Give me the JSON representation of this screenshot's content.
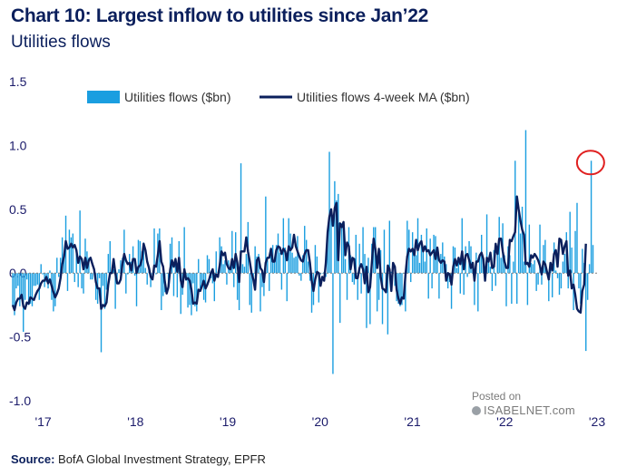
{
  "header": {
    "title": "Chart 10: Largest inflow to utilities since Jan’22",
    "subtitle": "Utilities flows"
  },
  "footer": {
    "source_label": "Source:",
    "source_text": "BofA Global Investment Strategy, EPFR"
  },
  "watermark": {
    "line1": "Posted on",
    "line2": "ISABELNET.com"
  },
  "colors": {
    "bars": "#1a9ee0",
    "ma": "#0b1f5c",
    "highlight": "#e02020",
    "axis_text": "#1a1a6a"
  },
  "chart_data": {
    "type": "bar",
    "title": "Utilities flows",
    "xlabel": "",
    "ylabel": "",
    "ylim": [
      -1.0,
      1.5
    ],
    "yticks": [
      1.5,
      1.0,
      0.5,
      0.0,
      -0.5,
      -1.0
    ],
    "ytick_labels": [
      "1.5",
      "1.0",
      "0.5",
      "0.0",
      "-0.5",
      "-1.0"
    ],
    "xticks": [
      "'17",
      "'18",
      "'19",
      "'20",
      "'21",
      "'22",
      "'23"
    ],
    "xtick_positions": [
      2017,
      2018,
      2019,
      2020,
      2021,
      2022,
      2023
    ],
    "x_range": [
      2016.65,
      2023.0
    ],
    "legend_position": "top-center",
    "series": [
      {
        "name": "Utilities flows ($bn)",
        "kind": "bar",
        "start": 2016.67,
        "step_weeks": 1,
        "values": [
          -0.25,
          -0.33,
          -0.12,
          -0.1,
          -0.26,
          -0.2,
          -0.46,
          -0.21,
          -0.05,
          -0.25,
          -0.24,
          -0.26,
          -0.1,
          -0.1,
          -0.09,
          -0.21,
          0.07,
          -0.01,
          -0.11,
          -0.07,
          -0.12,
          0.02,
          -0.21,
          -0.3,
          -0.26,
          0.12,
          -0.03,
          0.12,
          0.28,
          0.15,
          0.45,
          -0.14,
          0.34,
          0.28,
          0.31,
          -0.07,
          0.19,
          -0.11,
          0.49,
          -0.12,
          -0.16,
          0.27,
          0.17,
          0.12,
          -0.05,
          -0.05,
          0.02,
          -0.21,
          -0.24,
          -0.04,
          -0.62,
          -0.1,
          -0.28,
          -0.13,
          0.15,
          0.25,
          0.0,
          0.03,
          -0.28,
          -0.07,
          0.03,
          0.1,
          0.12,
          0.34,
          -0.16,
          -0.01,
          0.15,
          0.09,
          0.21,
          -0.02,
          -0.26,
          0.26,
          0.25,
          0.17,
          0.24,
          0.04,
          -0.09,
          0.04,
          -0.11,
          -0.04,
          0.35,
          -0.01,
          0.31,
          0.35,
          -0.29,
          -0.18,
          -0.15,
          0.0,
          -0.13,
          0.23,
          0.28,
          -0.18,
          0.12,
          -0.19,
          0.25,
          -0.32,
          -0.17,
          0.36,
          -0.06,
          -0.27,
          -0.25,
          -0.33,
          -0.08,
          -0.26,
          -0.3,
          0.11,
          -0.12,
          -0.11,
          -0.21,
          -0.23,
          0.14,
          0.11,
          -0.04,
          -0.08,
          -0.22,
          0.17,
          0.01,
          0.28,
          0.21,
          0.07,
          0.1,
          -0.09,
          0.1,
          0.05,
          0.33,
          -0.11,
          0.32,
          -0.21,
          -0.29,
          0.86,
          0.07,
          0.05,
          0.15,
          0.4,
          -0.25,
          -0.31,
          -0.05,
          0.21,
          0.13,
          0.15,
          -0.3,
          -0.11,
          -0.18,
          0.6,
          0.1,
          -0.14,
          0.19,
          0.22,
          0.1,
          0.22,
          0.31,
          0.16,
          -0.13,
          0.43,
          0.2,
          -0.22,
          0.43,
          0.31,
          0.16,
          0.12,
          0.13,
          0.29,
          -0.02,
          -0.06,
          0.14,
          0.37,
          0.26,
          0.09,
          -0.06,
          -0.31,
          -0.25,
          0.22,
          0.13,
          -0.23,
          -0.01,
          0.0,
          0.01,
          -0.03,
          0.33,
          0.95,
          0.49,
          -0.79,
          0.72,
          0.57,
          0.62,
          -0.39,
          0.39,
          0.34,
          0.11,
          -0.21,
          0.36,
          0.14,
          -0.07,
          -0.09,
          0.3,
          -0.21,
          0.23,
          -0.16,
          0.36,
          0.15,
          -0.43,
          0.12,
          -0.4,
          0.23,
          0.36,
          0.36,
          -0.3,
          -0.21,
          0.18,
          -0.4,
          0.34,
          -0.1,
          -0.48,
          0.41,
          0.01,
          0.0,
          -0.1,
          -0.22,
          -0.24,
          -0.26,
          -0.25,
          0.0,
          -0.3,
          0.41,
          0.34,
          -0.07,
          0.32,
          0.16,
          0.14,
          0.43,
          0.08,
          0.3,
          0.19,
          0.09,
          0.35,
          -0.2,
          0.27,
          -0.12,
          0.3,
          0.29,
          0.15,
          -0.2,
          0.15,
          0.24,
          0.13,
          0.07,
          -0.12,
          -0.07,
          -0.28,
          0.21,
          0.2,
          0.04,
          0.11,
          -0.16,
          0.43,
          -0.17,
          0.21,
          -0.03,
          0.25,
          0.21,
          0.08,
          -0.25,
          0.16,
          -0.3,
          0.15,
          0.3,
          0.08,
          0.02,
          0.46,
          0.1,
          0.05,
          -0.14,
          0.18,
          -0.1,
          0.2,
          0.44,
          0.12,
          0.39,
          0.14,
          -0.26,
          0.21,
          0.14,
          -0.24,
          0.09,
          0.88,
          -0.24,
          0.48,
          0.31,
          0.52,
          0.09,
          1.12,
          -0.25,
          0.38,
          0.08,
          0.07,
          0.1,
          -0.14,
          -0.09,
          0.38,
          -0.09,
          0.22,
          0.26,
          -0.01,
          -0.22,
          0.06,
          -0.19,
          0.24,
          0.02,
          -0.04,
          -0.17,
          -0.12,
          0.09,
          0.15,
          0.32,
          -0.12,
          0.48,
          0.2,
          -0.29,
          0.33,
          0.55,
          -0.12,
          -0.24,
          0.19,
          0.08,
          -0.61,
          -0.21,
          0.07,
          0.88,
          0.22
        ]
      },
      {
        "name": "Utilities flows 4-week MA ($bn)",
        "kind": "line",
        "start": 2016.67,
        "step_weeks": 1,
        "values": [
          -0.25,
          -0.29,
          -0.23,
          -0.2,
          -0.2,
          -0.17,
          -0.26,
          -0.28,
          -0.23,
          -0.24,
          -0.19,
          -0.2,
          -0.21,
          -0.17,
          -0.14,
          -0.12,
          -0.08,
          -0.06,
          -0.06,
          -0.03,
          -0.08,
          -0.05,
          -0.1,
          -0.15,
          -0.19,
          -0.16,
          -0.12,
          -0.04,
          0.07,
          0.13,
          0.25,
          0.19,
          0.2,
          0.23,
          0.2,
          0.22,
          0.18,
          0.08,
          0.13,
          0.11,
          0.03,
          0.12,
          0.04,
          0.1,
          0.12,
          0.07,
          0.03,
          -0.07,
          -0.12,
          -0.12,
          -0.28,
          -0.25,
          -0.26,
          -0.23,
          -0.09,
          0.0,
          0.0,
          0.11,
          0.0,
          -0.08,
          -0.08,
          -0.05,
          0.07,
          0.15,
          0.1,
          0.07,
          0.08,
          0.02,
          0.11,
          0.11,
          0.0,
          0.05,
          0.06,
          0.11,
          0.23,
          0.18,
          0.09,
          0.04,
          -0.03,
          -0.05,
          0.06,
          0.05,
          0.14,
          0.25,
          0.09,
          0.05,
          -0.07,
          -0.16,
          -0.11,
          0.03,
          0.1,
          0.05,
          0.11,
          0.01,
          0.12,
          -0.06,
          -0.11,
          0.03,
          -0.05,
          -0.04,
          -0.06,
          -0.13,
          -0.24,
          -0.23,
          -0.24,
          -0.13,
          -0.14,
          -0.1,
          -0.06,
          -0.12,
          -0.09,
          -0.05,
          -0.0,
          0.03,
          -0.06,
          -0.01,
          -0.03,
          0.06,
          0.17,
          0.14,
          0.16,
          0.07,
          0.04,
          0.03,
          0.11,
          0.04,
          0.15,
          0.08,
          -0.07,
          0.17,
          0.17,
          0.17,
          0.28,
          0.17,
          0.09,
          0.0,
          -0.05,
          -0.13,
          0.1,
          0.12,
          0.04,
          0.02,
          -0.07,
          0.08,
          0.12,
          0.12,
          0.19,
          0.09,
          0.09,
          0.18,
          0.21,
          0.2,
          0.15,
          0.19,
          0.17,
          0.1,
          0.21,
          0.18,
          0.2,
          0.3,
          0.21,
          0.17,
          0.13,
          0.1,
          0.09,
          0.15,
          0.18,
          0.18,
          0.08,
          -0.06,
          -0.14,
          -0.05,
          0.01,
          0.0,
          -0.1,
          -0.03,
          -0.06,
          0.08,
          0.32,
          0.44,
          0.5,
          0.37,
          0.51,
          0.55,
          0.1,
          0.39,
          0.36,
          0.4,
          0.14,
          0.24,
          0.21,
          0.03,
          0.12,
          0.11,
          -0.04,
          -0.04,
          0.04,
          0.07,
          0.03,
          -0.08,
          0.05,
          -0.15,
          -0.11,
          0.08,
          0.27,
          0.19,
          0.04,
          0.19,
          -0.03,
          -0.12,
          -0.13,
          -0.15,
          0.06,
          0.03,
          -0.14,
          0.08,
          0.05,
          -0.13,
          -0.2,
          -0.24,
          -0.19,
          -0.2,
          -0.01,
          0.13,
          0.19,
          0.17,
          0.19,
          0.14,
          0.26,
          0.18,
          0.23,
          0.25,
          0.17,
          0.21,
          0.17,
          0.18,
          0.14,
          0.16,
          0.18,
          0.11,
          0.2,
          0.1,
          0.08,
          0.1,
          0.09,
          -0.06,
          -0.0,
          -0.01,
          -0.09,
          0.05,
          0.11,
          0.06,
          0.12,
          0.07,
          0.17,
          0.03,
          0.14,
          0.15,
          0.1,
          0.04,
          0.08,
          -0.06,
          0.09,
          0.09,
          0.14,
          0.16,
          0.11,
          -0.06,
          0.12,
          0.09,
          0.16,
          0.04,
          0.05,
          0.23,
          0.15,
          0.27,
          0.27,
          0.17,
          0.09,
          0.04,
          0.04,
          0.26,
          0.25,
          0.29,
          0.32,
          0.6,
          0.5,
          0.41,
          0.34,
          0.3,
          0.07,
          0.08,
          0.05,
          0.14,
          0.12,
          0.15,
          0.13,
          0.1,
          0.06,
          -0.01,
          0.09,
          0.07,
          0.01,
          -0.05,
          0.08,
          0.02,
          0.15,
          0.18,
          0.05,
          0.27,
          0.26,
          0.15,
          0.21,
          0.25,
          -0.02,
          0.02,
          -0.12,
          -0.09,
          -0.17,
          -0.28,
          -0.3,
          -0.31,
          -0.14,
          -0.09,
          0.23
        ]
      }
    ],
    "annotations": [
      {
        "type": "circle",
        "label": "latest inflow",
        "x": 2022.92,
        "y": 0.88
      }
    ]
  }
}
